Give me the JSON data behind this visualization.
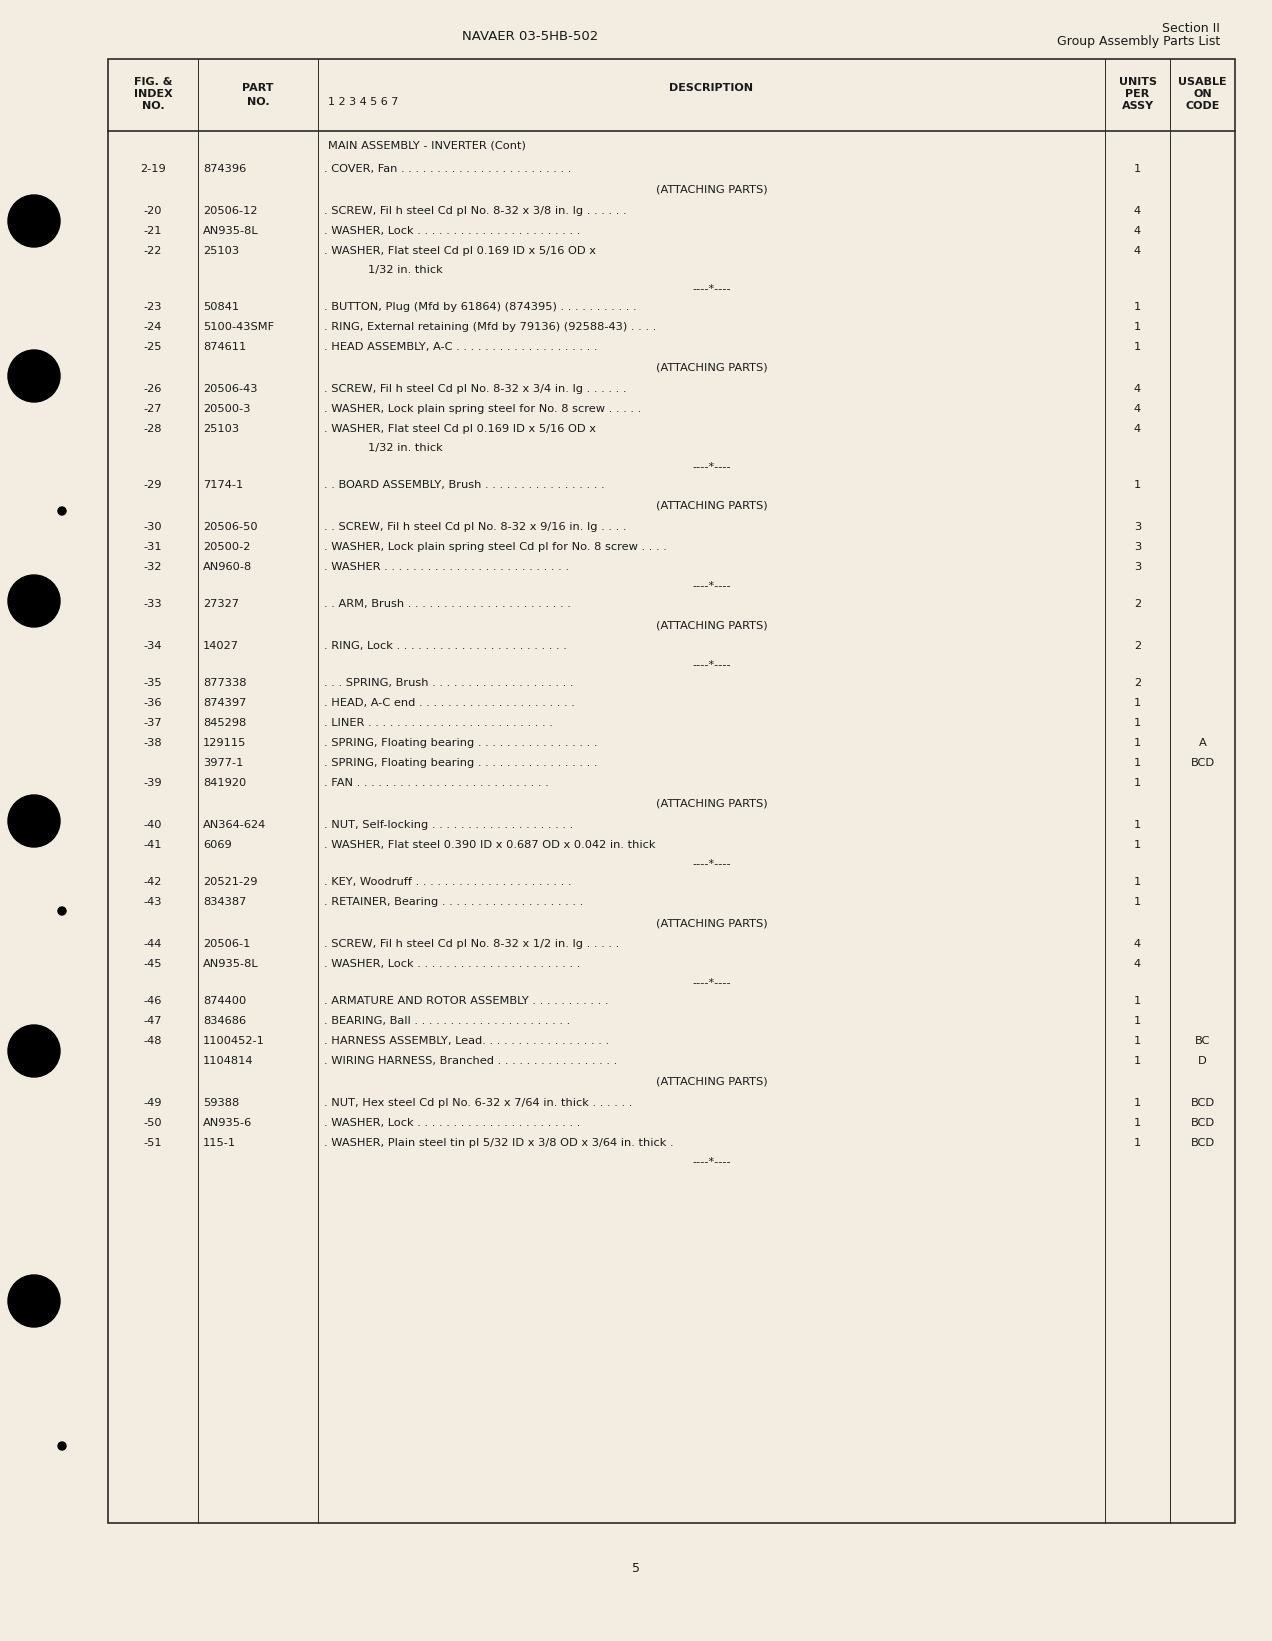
{
  "page_bg": "#f2ede0",
  "header_center": "NAVAER 03-5HB-502",
  "header_right_line1": "Section II",
  "header_right_line2": "Group Assembly Parts List",
  "page_number": "5",
  "rows": [
    {
      "fig": "",
      "part": "",
      "desc": "MAIN ASSEMBLY - INVERTER (Cont)",
      "qty": "",
      "code": "",
      "type": "title"
    },
    {
      "fig": "2-19",
      "part": "874396",
      "desc": ". COVER, Fan . . . . . . . . . . . . . . . . . . . . . . . .",
      "qty": "1",
      "code": "",
      "type": "normal"
    },
    {
      "fig": "",
      "part": "",
      "desc": "(ATTACHING PARTS)",
      "qty": "",
      "code": "",
      "type": "attaching"
    },
    {
      "fig": "-20",
      "part": "20506-12",
      "desc": ". SCREW, Fil h steel Cd pl No. 8-32 x 3/8 in. lg . . . . . .",
      "qty": "4",
      "code": "",
      "type": "normal"
    },
    {
      "fig": "-21",
      "part": "AN935-8L",
      "desc": ". WASHER, Lock . . . . . . . . . . . . . . . . . . . . . . .",
      "qty": "4",
      "code": "",
      "type": "normal"
    },
    {
      "fig": "-22",
      "part": "25103",
      "desc": ". WASHER, Flat steel Cd pl 0.169 ID x 5/16 OD x",
      "qty": "4",
      "code": "",
      "type": "normal"
    },
    {
      "fig": "",
      "part": "",
      "desc": "      1/32 in. thick",
      "qty": "",
      "code": "",
      "type": "continuation"
    },
    {
      "fig": "",
      "part": "",
      "desc": "----*----",
      "qty": "",
      "code": "",
      "type": "separator"
    },
    {
      "fig": "-23",
      "part": "50841",
      "desc": ". BUTTON, Plug (Mfd by 61864) (874395) . . . . . . . . . . .",
      "qty": "1",
      "code": "",
      "type": "normal"
    },
    {
      "fig": "-24",
      "part": "5100-43SMF",
      "desc": ". RING, External retaining (Mfd by 79136) (92588-43) . . . .",
      "qty": "1",
      "code": "",
      "type": "normal"
    },
    {
      "fig": "-25",
      "part": "874611",
      "desc": ". HEAD ASSEMBLY, A-C . . . . . . . . . . . . . . . . . . . .",
      "qty": "1",
      "code": "",
      "type": "normal"
    },
    {
      "fig": "",
      "part": "",
      "desc": "(ATTACHING PARTS)",
      "qty": "",
      "code": "",
      "type": "attaching"
    },
    {
      "fig": "-26",
      "part": "20506-43",
      "desc": ". SCREW, Fil h steel Cd pl No. 8-32 x 3/4 in. lg . . . . . .",
      "qty": "4",
      "code": "",
      "type": "normal"
    },
    {
      "fig": "-27",
      "part": "20500-3",
      "desc": ". WASHER, Lock plain spring steel for No. 8 screw . . . . .",
      "qty": "4",
      "code": "",
      "type": "normal"
    },
    {
      "fig": "-28",
      "part": "25103",
      "desc": ". WASHER, Flat steel Cd pl 0.169 ID x 5/16 OD x",
      "qty": "4",
      "code": "",
      "type": "normal"
    },
    {
      "fig": "",
      "part": "",
      "desc": "      1/32 in. thick",
      "qty": "",
      "code": "",
      "type": "continuation"
    },
    {
      "fig": "",
      "part": "",
      "desc": "----*----",
      "qty": "",
      "code": "",
      "type": "separator"
    },
    {
      "fig": "-29",
      "part": "7174-1",
      "desc": ". . BOARD ASSEMBLY, Brush . . . . . . . . . . . . . . . . .",
      "qty": "1",
      "code": "",
      "type": "normal"
    },
    {
      "fig": "",
      "part": "",
      "desc": "(ATTACHING PARTS)",
      "qty": "",
      "code": "",
      "type": "attaching"
    },
    {
      "fig": "-30",
      "part": "20506-50",
      "desc": ". . SCREW, Fil h steel Cd pl No. 8-32 x 9/16 in. lg . . . .",
      "qty": "3",
      "code": "",
      "type": "normal"
    },
    {
      "fig": "-31",
      "part": "20500-2",
      "desc": ". WASHER, Lock plain spring steel Cd pl for No. 8 screw . . . .",
      "qty": "3",
      "code": "",
      "type": "normal"
    },
    {
      "fig": "-32",
      "part": "AN960-8",
      "desc": ". WASHER . . . . . . . . . . . . . . . . . . . . . . . . . .",
      "qty": "3",
      "code": "",
      "type": "normal"
    },
    {
      "fig": "",
      "part": "",
      "desc": "----*----",
      "qty": "",
      "code": "",
      "type": "separator"
    },
    {
      "fig": "-33",
      "part": "27327",
      "desc": ". . ARM, Brush . . . . . . . . . . . . . . . . . . . . . . .",
      "qty": "2",
      "code": "",
      "type": "normal"
    },
    {
      "fig": "",
      "part": "",
      "desc": "(ATTACHING PARTS)",
      "qty": "",
      "code": "",
      "type": "attaching"
    },
    {
      "fig": "-34",
      "part": "14027",
      "desc": ". RING, Lock . . . . . . . . . . . . . . . . . . . . . . . .",
      "qty": "2",
      "code": "",
      "type": "normal"
    },
    {
      "fig": "",
      "part": "",
      "desc": "----*----",
      "qty": "",
      "code": "",
      "type": "separator"
    },
    {
      "fig": "-35",
      "part": "877338",
      "desc": ". . . SPRING, Brush . . . . . . . . . . . . . . . . . . . .",
      "qty": "2",
      "code": "",
      "type": "normal"
    },
    {
      "fig": "-36",
      "part": "874397",
      "desc": ". HEAD, A-C end . . . . . . . . . . . . . . . . . . . . . .",
      "qty": "1",
      "code": "",
      "type": "normal"
    },
    {
      "fig": "-37",
      "part": "845298",
      "desc": ". LINER . . . . . . . . . . . . . . . . . . . . . . . . . .",
      "qty": "1",
      "code": "",
      "type": "normal"
    },
    {
      "fig": "-38",
      "part": "129115",
      "desc": ". SPRING, Floating bearing . . . . . . . . . . . . . . . . .",
      "qty": "1",
      "code": "A",
      "type": "normal"
    },
    {
      "fig": "",
      "part": "3977-1",
      "desc": ". SPRING, Floating bearing . . . . . . . . . . . . . . . . .",
      "qty": "1",
      "code": "BCD",
      "type": "normal"
    },
    {
      "fig": "-39",
      "part": "841920",
      "desc": ". FAN . . . . . . . . . . . . . . . . . . . . . . . . . . .",
      "qty": "1",
      "code": "",
      "type": "normal"
    },
    {
      "fig": "",
      "part": "",
      "desc": "(ATTACHING PARTS)",
      "qty": "",
      "code": "",
      "type": "attaching"
    },
    {
      "fig": "-40",
      "part": "AN364-624",
      "desc": ". NUT, Self-locking . . . . . . . . . . . . . . . . . . . .",
      "qty": "1",
      "code": "",
      "type": "normal"
    },
    {
      "fig": "-41",
      "part": "6069",
      "desc": ". WASHER, Flat steel 0.390 ID x 0.687 OD x 0.042 in. thick",
      "qty": "1",
      "code": "",
      "type": "normal"
    },
    {
      "fig": "",
      "part": "",
      "desc": "----*----",
      "qty": "",
      "code": "",
      "type": "separator"
    },
    {
      "fig": "-42",
      "part": "20521-29",
      "desc": ". KEY, Woodruff . . . . . . . . . . . . . . . . . . . . . .",
      "qty": "1",
      "code": "",
      "type": "normal"
    },
    {
      "fig": "-43",
      "part": "834387",
      "desc": ". RETAINER, Bearing . . . . . . . . . . . . . . . . . . . .",
      "qty": "1",
      "code": "",
      "type": "normal"
    },
    {
      "fig": "",
      "part": "",
      "desc": "(ATTACHING PARTS)",
      "qty": "",
      "code": "",
      "type": "attaching"
    },
    {
      "fig": "-44",
      "part": "20506-1",
      "desc": ". SCREW, Fil h steel Cd pl No. 8-32 x 1/2 in. lg . . . . .",
      "qty": "4",
      "code": "",
      "type": "normal"
    },
    {
      "fig": "-45",
      "part": "AN935-8L",
      "desc": ". WASHER, Lock . . . . . . . . . . . . . . . . . . . . . . .",
      "qty": "4",
      "code": "",
      "type": "normal"
    },
    {
      "fig": "",
      "part": "",
      "desc": "----*----",
      "qty": "",
      "code": "",
      "type": "separator"
    },
    {
      "fig": "-46",
      "part": "874400",
      "desc": ". ARMATURE AND ROTOR ASSEMBLY . . . . . . . . . . .",
      "qty": "1",
      "code": "",
      "type": "normal"
    },
    {
      "fig": "-47",
      "part": "834686",
      "desc": ". BEARING, Ball . . . . . . . . . . . . . . . . . . . . . .",
      "qty": "1",
      "code": "",
      "type": "normal"
    },
    {
      "fig": "-48",
      "part": "1100452-1",
      "desc": ". HARNESS ASSEMBLY, Lead. . . . . . . . . . . . . . . . . .",
      "qty": "1",
      "code": "BC",
      "type": "normal"
    },
    {
      "fig": "",
      "part": "1104814",
      "desc": ". WIRING HARNESS, Branched . . . . . . . . . . . . . . . . .",
      "qty": "1",
      "code": "D",
      "type": "normal"
    },
    {
      "fig": "",
      "part": "",
      "desc": "(ATTACHING PARTS)",
      "qty": "",
      "code": "",
      "type": "attaching"
    },
    {
      "fig": "-49",
      "part": "59388",
      "desc": ". NUT, Hex steel Cd pl No. 6-32 x 7/64 in. thick . . . . . .",
      "qty": "1",
      "code": "BCD",
      "type": "normal"
    },
    {
      "fig": "-50",
      "part": "AN935-6",
      "desc": ". WASHER, Lock . . . . . . . . . . . . . . . . . . . . . . .",
      "qty": "1",
      "code": "BCD",
      "type": "normal"
    },
    {
      "fig": "-51",
      "part": "115-1",
      "desc": ". WASHER, Plain steel tin pl 5/32 ID x 3/8 OD x 3/64 in. thick .",
      "qty": "1",
      "code": "BCD",
      "type": "normal"
    },
    {
      "fig": "",
      "part": "",
      "desc": "----*----",
      "qty": "",
      "code": "",
      "type": "separator"
    }
  ]
}
